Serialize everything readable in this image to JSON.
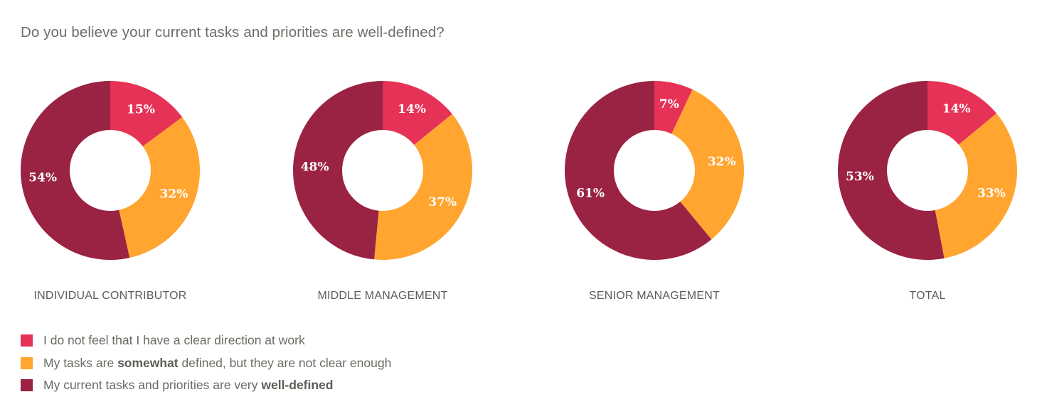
{
  "title": "Do you believe your current tasks and priorities are well-defined?",
  "colors": {
    "unclear": "#e63256",
    "somewhat": "#ffa530",
    "well_defined": "#9a2243"
  },
  "legend": [
    {
      "pre": "I do not feel that I have a clear direction at work",
      "bold": "",
      "post": "",
      "color": "#e63256"
    },
    {
      "pre": "My tasks are ",
      "bold": "somewhat",
      "post": " defined, but they are not clear enough",
      "color": "#ffa530"
    },
    {
      "pre": "My current tasks and priorities are very ",
      "bold": "well-defined",
      "post": "",
      "color": "#9a2243"
    }
  ],
  "chart_data": [
    {
      "type": "pie",
      "title": "INDIVIDUAL CONTRIBUTOR",
      "slices": [
        {
          "label": "I do not feel that I have a clear direction at work",
          "value": 15,
          "display": "15%",
          "color": "#e63256"
        },
        {
          "label": "My tasks are somewhat defined, but they are not clear enough",
          "value": 32,
          "display": "32%",
          "color": "#ffa530"
        },
        {
          "label": "My current tasks and priorities are very well-defined",
          "value": 54,
          "display": "54%",
          "color": "#9a2243"
        }
      ]
    },
    {
      "type": "pie",
      "title": "MIDDLE MANAGEMENT",
      "slices": [
        {
          "label": "I do not feel that I have a clear direction at work",
          "value": 14,
          "display": "14%",
          "color": "#e63256"
        },
        {
          "label": "My tasks are somewhat defined, but they are not clear enough",
          "value": 37,
          "display": "37%",
          "color": "#ffa530"
        },
        {
          "label": "My current tasks and priorities are very well-defined",
          "value": 48,
          "display": "48%",
          "color": "#9a2243"
        }
      ]
    },
    {
      "type": "pie",
      "title": "SENIOR MANAGEMENT",
      "slices": [
        {
          "label": "I do not feel that I have a clear direction at work",
          "value": 7,
          "display": "7%",
          "color": "#e63256"
        },
        {
          "label": "My tasks are somewhat defined, but they are not clear enough",
          "value": 32,
          "display": "32%",
          "color": "#ffa530"
        },
        {
          "label": "My current tasks and priorities are very well-defined",
          "value": 61,
          "display": "61%",
          "color": "#9a2243"
        }
      ]
    },
    {
      "type": "pie",
      "title": "TOTAL",
      "slices": [
        {
          "label": "I do not feel that I have a clear direction at work",
          "value": 14,
          "display": "14%",
          "color": "#e63256"
        },
        {
          "label": "My tasks are somewhat defined, but they are not clear enough",
          "value": 33,
          "display": "33%",
          "color": "#ffa530"
        },
        {
          "label": "My current tasks and priorities are very well-defined",
          "value": 53,
          "display": "53%",
          "color": "#9a2243"
        }
      ]
    }
  ]
}
